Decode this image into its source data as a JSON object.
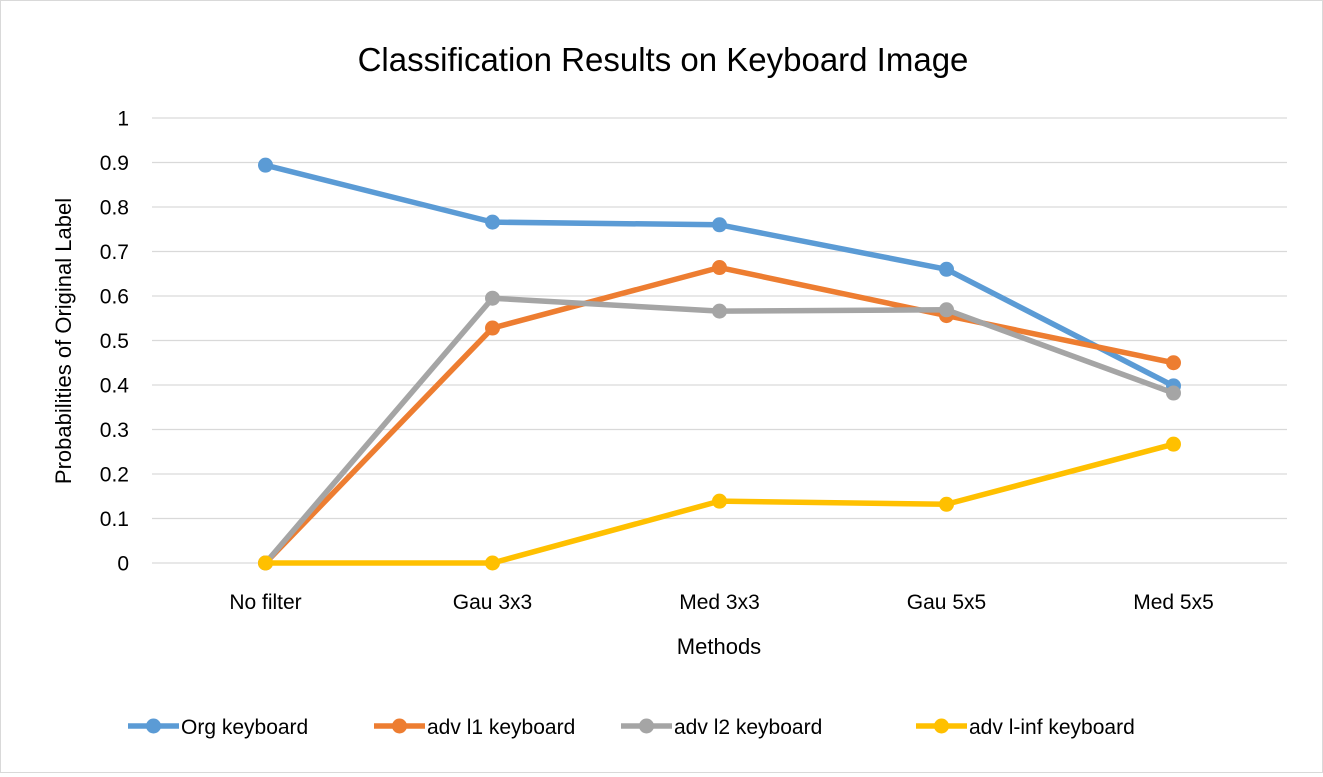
{
  "chart_data": {
    "type": "line",
    "title": "Classification Results on Keyboard Image",
    "xlabel": "Methods",
    "ylabel": "Probabilities of Original Label",
    "categories": [
      "No filter",
      "Gau 3x3",
      "Med 3x3",
      "Gau 5x5",
      "Med 5x5"
    ],
    "ylim": [
      0,
      1
    ],
    "yticks": [
      "0",
      "0.1",
      "0.2",
      "0.3",
      "0.4",
      "0.5",
      "0.6",
      "0.7",
      "0.8",
      "0.9",
      "1"
    ],
    "grid": true,
    "legend_position": "bottom",
    "series": [
      {
        "name": "Org keyboard",
        "color": "#5b9bd5",
        "values": [
          0.894,
          0.766,
          0.76,
          0.66,
          0.398
        ]
      },
      {
        "name": "adv l1 keyboard",
        "color": "#ed7d31",
        "values": [
          0.0,
          0.528,
          0.664,
          0.556,
          0.45
        ]
      },
      {
        "name": "adv l2 keyboard",
        "color": "#a5a5a5",
        "values": [
          0.0,
          0.595,
          0.566,
          0.569,
          0.382
        ]
      },
      {
        "name": "adv l-inf keyboard",
        "color": "#ffc000",
        "values": [
          0.0,
          0.0,
          0.139,
          0.132,
          0.267
        ]
      }
    ]
  }
}
